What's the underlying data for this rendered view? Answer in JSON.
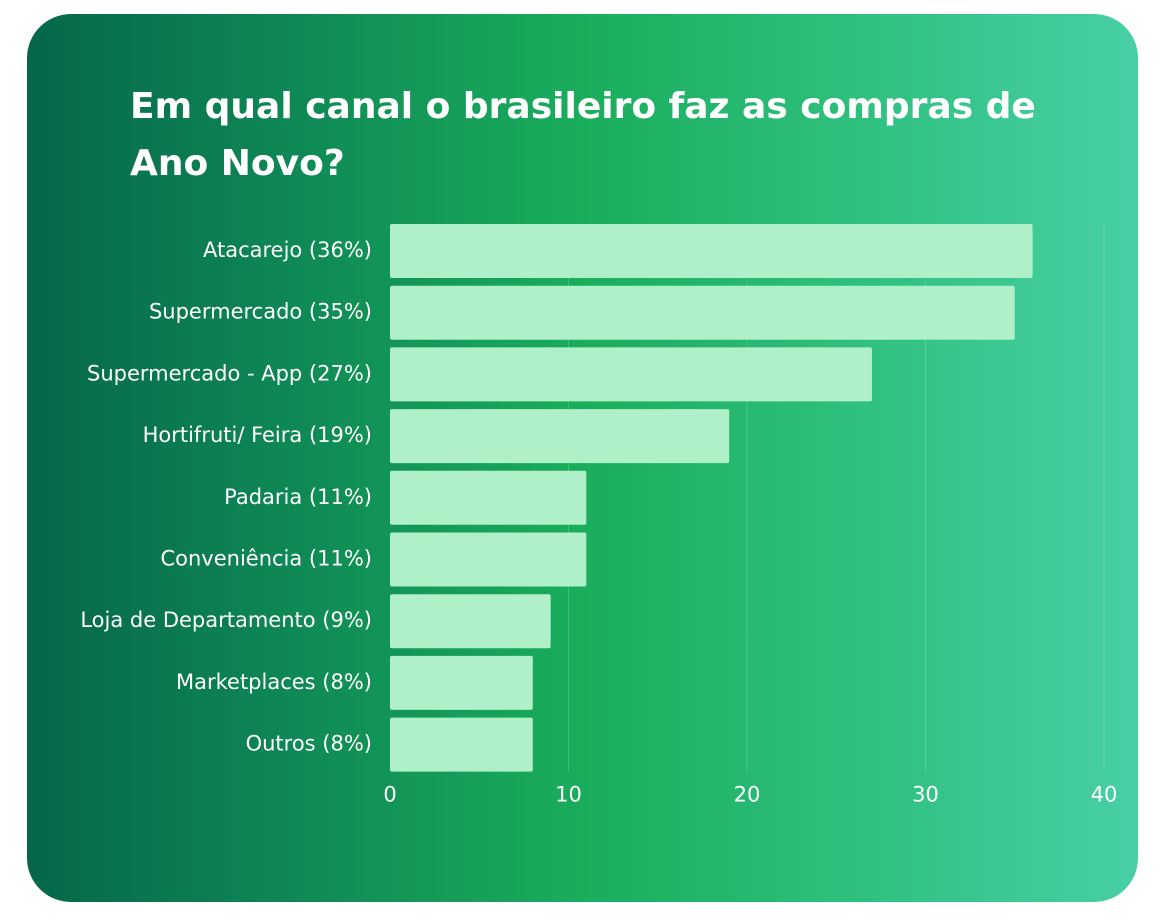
{
  "chart_data": {
    "type": "bar",
    "orientation": "horizontal",
    "title": "Em qual canal o brasileiro faz as compras de Ano Novo?",
    "categories": [
      "Atacarejo (36%)",
      "Supermercado (35%)",
      "Supermercado - App (27%)",
      "Hortifruti/ Feira (19%)",
      "Padaria (11%)",
      "Conveniência (11%)",
      "Loja de Departamento (9%)",
      "Marketplaces (8%)",
      "Outros (8%)"
    ],
    "values": [
      36,
      35,
      27,
      19,
      11,
      11,
      9,
      8,
      8
    ],
    "color": "#aff0c8",
    "xlim": [
      0,
      40
    ],
    "xticks": [
      0,
      10,
      20,
      30,
      40
    ],
    "grid": true
  }
}
